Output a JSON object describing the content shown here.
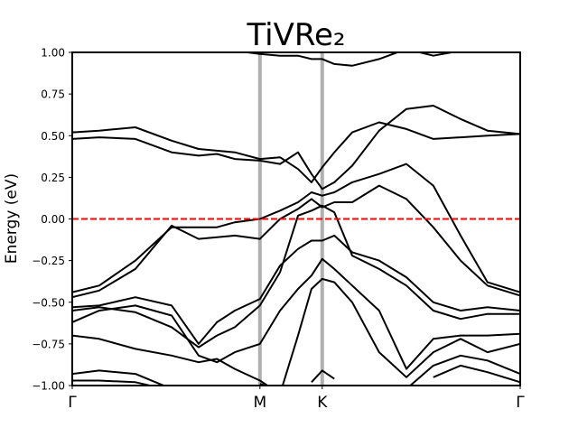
{
  "chart_data": {
    "type": "line",
    "title": "TiVRe₂",
    "y_label": "Energy (eV)",
    "color": "#000000",
    "fermi_level": 0,
    "fermi_color": "#ff0000",
    "kpoint_line_color": "#b0b0b0",
    "xlim": [
      0,
      1
    ],
    "ylim": [
      -1,
      1
    ],
    "xticks": [
      {
        "value": 0,
        "label": "Γ"
      },
      {
        "value": 0.419,
        "label": "M"
      },
      {
        "value": 0.558,
        "label": "K"
      },
      {
        "value": 1,
        "label": "Γ"
      }
    ],
    "yticks": [
      {
        "value": -1,
        "label": "−1.00"
      },
      {
        "value": -0.75,
        "label": "−0.75"
      },
      {
        "value": -0.5,
        "label": "−0.50"
      },
      {
        "value": -0.25,
        "label": "−0.25"
      },
      {
        "value": 0,
        "label": "0.00"
      },
      0.25,
      {
        "value": 0.5,
        "label": "0.50"
      },
      0.75,
      {
        "value": 1,
        "label": "1.00"
      }
    ],
    "x": [
      0,
      0.06,
      0.141,
      0.222,
      0.282,
      0.323,
      0.363,
      0.419,
      0.464,
      0.504,
      0.534,
      0.558,
      0.585,
      0.625,
      0.685,
      0.746,
      0.806,
      0.867,
      0.927,
      1.0
    ],
    "series": [
      {
        "values": [
          0.52,
          0.53,
          0.55,
          0.47,
          0.42,
          0.41,
          0.4,
          0.36,
          0.37,
          0.3,
          0.22,
          0.31,
          0.4,
          0.52,
          0.58,
          0.54,
          0.48,
          0.49,
          0.5,
          0.51
        ]
      },
      {
        "values": [
          0.48,
          0.49,
          0.48,
          0.4,
          0.38,
          0.39,
          0.36,
          0.35,
          0.33,
          0.4,
          0.27,
          0.18,
          0.22,
          0.32,
          0.53,
          0.66,
          0.68,
          0.6,
          0.53,
          0.51
        ]
      },
      {
        "values": [
          -0.44,
          -0.4,
          -0.25,
          -0.05,
          -0.05,
          -0.05,
          -0.02,
          0.0,
          0.05,
          0.1,
          0.16,
          0.14,
          0.16,
          0.22,
          0.27,
          0.33,
          0.2,
          -0.1,
          -0.38,
          -0.44
        ]
      },
      {
        "values": [
          -0.47,
          -0.43,
          -0.3,
          -0.04,
          -0.12,
          -0.11,
          -0.1,
          -0.12,
          0.0,
          0.06,
          0.12,
          0.07,
          0.1,
          0.1,
          0.2,
          0.12,
          -0.05,
          -0.25,
          -0.4,
          -0.46
        ]
      },
      {
        "values": [
          -0.53,
          -0.52,
          -0.47,
          -0.52,
          -0.75,
          -0.62,
          -0.55,
          -0.48,
          -0.28,
          -0.18,
          -0.13,
          -0.13,
          -0.1,
          -0.2,
          -0.25,
          -0.35,
          -0.5,
          -0.55,
          -0.53,
          -0.55
        ]
      },
      {
        "values": [
          -0.55,
          -0.53,
          -0.56,
          -0.65,
          -0.77,
          -0.7,
          -0.65,
          -0.52,
          -0.32,
          0.02,
          0.05,
          0.08,
          0.04,
          -0.22,
          -0.3,
          -0.4,
          -0.55,
          -0.6,
          -0.57,
          -0.57
        ]
      },
      {
        "values": [
          -0.62,
          -0.55,
          -0.52,
          -0.58,
          -0.82,
          -0.86,
          -0.8,
          -0.75,
          -0.55,
          -0.42,
          -0.34,
          -0.24,
          -0.3,
          -0.4,
          -0.55,
          -0.9,
          -0.72,
          -0.7,
          -0.7,
          -0.69
        ]
      },
      {
        "values": [
          -0.7,
          -0.72,
          -0.78,
          -0.82,
          -0.86,
          -0.84,
          -0.9,
          -0.97,
          -1.05,
          -0.7,
          -0.42,
          -0.36,
          -0.38,
          -0.5,
          -0.8,
          -0.95,
          -0.8,
          -0.72,
          -0.8,
          -0.75
        ]
      },
      {
        "values": [
          -0.93,
          -0.91,
          -0.93,
          -1.02,
          null,
          null,
          null,
          -0.99,
          -1.02,
          null,
          -0.98,
          -0.91,
          -0.96,
          null,
          null,
          -1.02,
          -0.88,
          -0.82,
          -0.85,
          -0.93
        ]
      },
      {
        "values": [
          -0.97,
          -0.97,
          -0.98,
          -1.03,
          null,
          null,
          null,
          null,
          null,
          null,
          null,
          null,
          null,
          null,
          null,
          null,
          -0.95,
          -0.88,
          -0.92,
          -0.98
        ]
      },
      {
        "values": [
          null,
          null,
          null,
          null,
          null,
          null,
          1.01,
          0.99,
          0.98,
          0.98,
          0.96,
          0.96,
          0.93,
          0.92,
          0.96,
          1.02,
          0.98,
          1.01,
          null,
          null
        ]
      }
    ]
  }
}
